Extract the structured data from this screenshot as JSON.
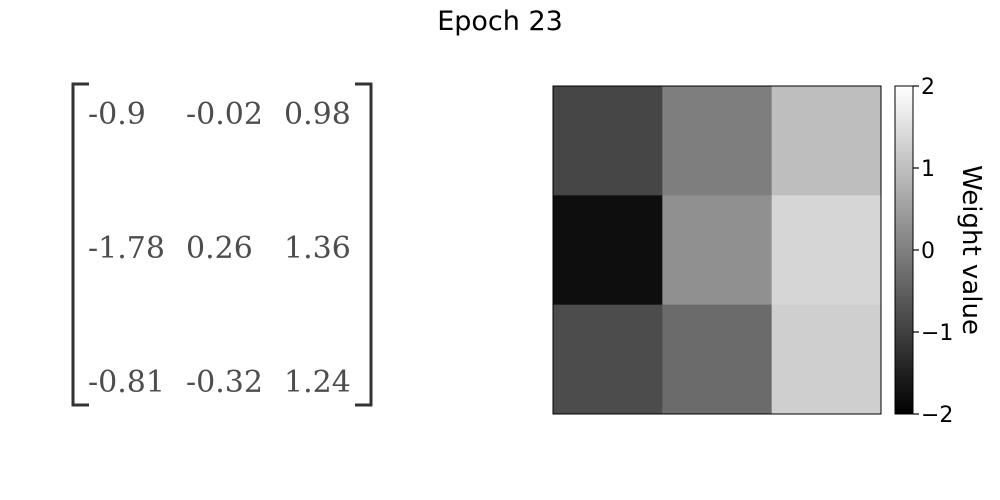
{
  "title": "Epoch 23",
  "chart_data": [
    {
      "type": "table",
      "rows": [
        [
          "-0.9",
          "-0.02",
          "0.98"
        ],
        [
          "-1.78",
          "0.26",
          "1.36"
        ],
        [
          "-0.81",
          "-0.32",
          "1.24"
        ]
      ]
    },
    {
      "type": "heatmap",
      "values": [
        [
          -0.9,
          -0.02,
          0.98
        ],
        [
          -1.78,
          0.26,
          1.36
        ],
        [
          -0.81,
          -0.32,
          1.24
        ]
      ],
      "colormap": "gray",
      "vmin": -2,
      "vmax": 2,
      "colorbar": {
        "label": "Weight value",
        "ticks": [
          2,
          1,
          0,
          -1,
          -2
        ],
        "tick_labels": [
          "2",
          "1",
          "0",
          "−1",
          "−2"
        ]
      }
    }
  ]
}
